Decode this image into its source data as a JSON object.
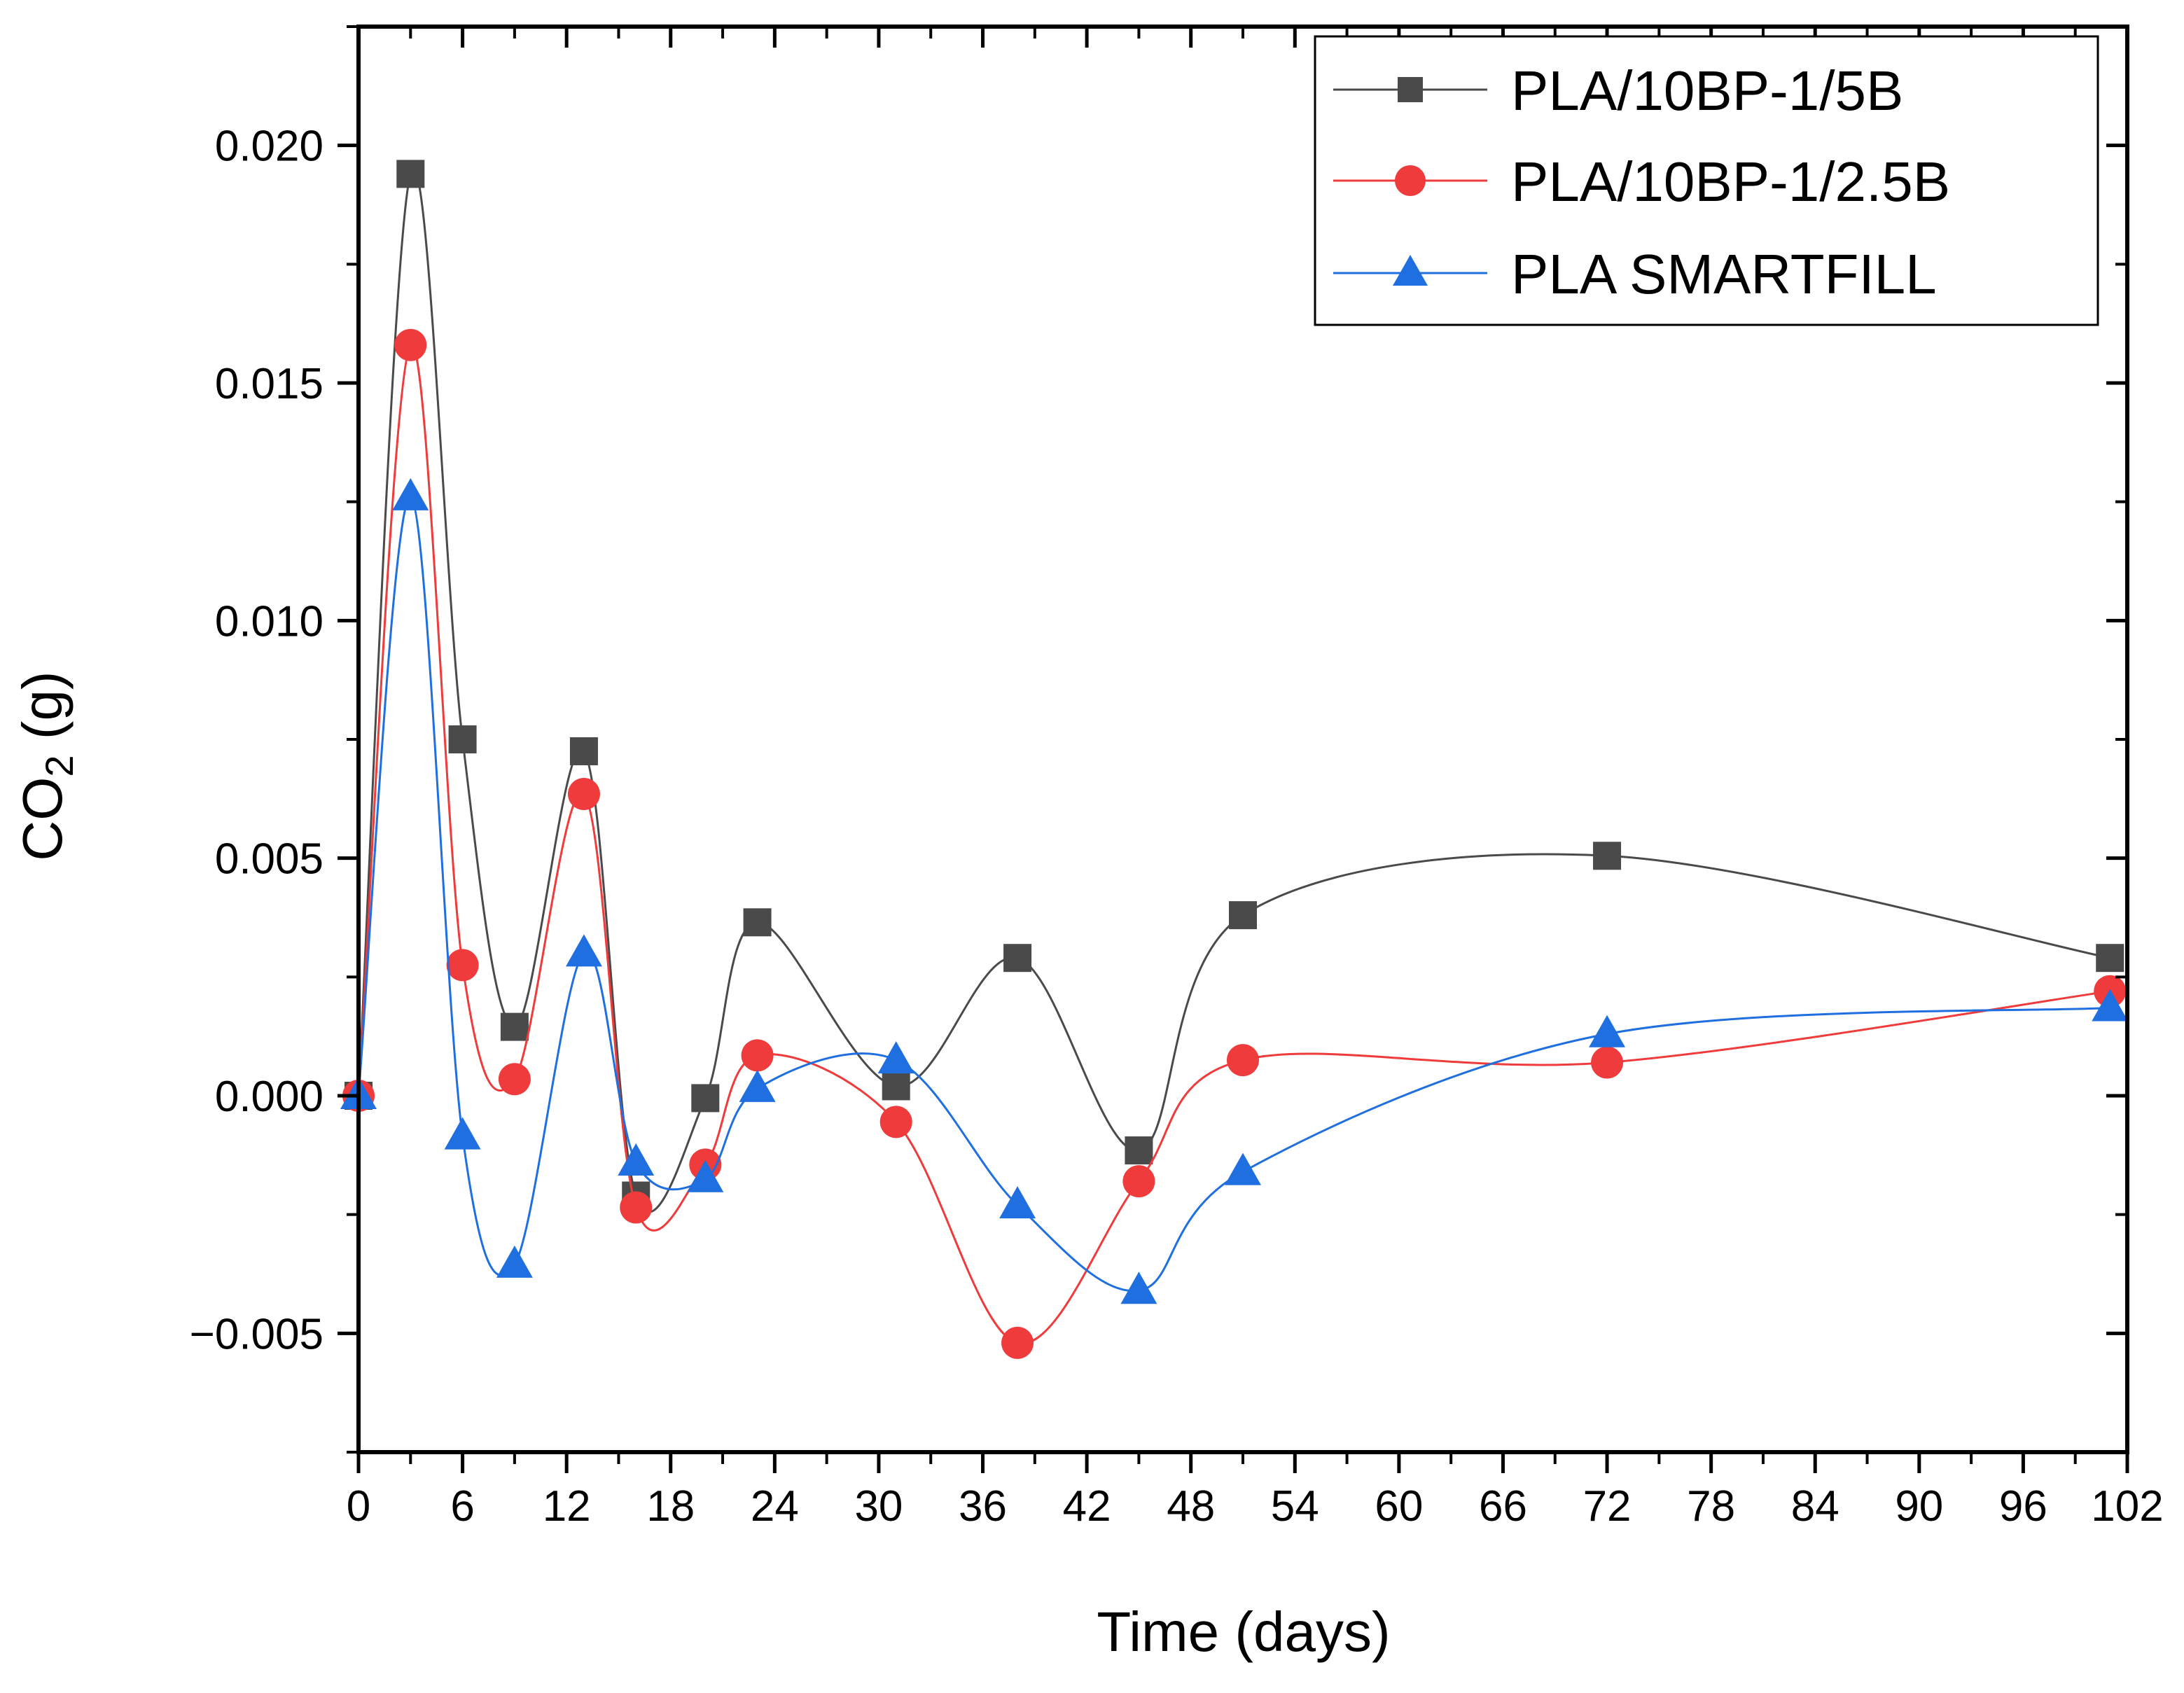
{
  "chart_data": {
    "type": "line",
    "title": "",
    "xlabel": "Time (days)",
    "ylabel_main": "CO",
    "ylabel_sub": "2",
    "ylabel_unit": " (g)",
    "xlim": [
      0,
      102
    ],
    "ylim": [
      -0.0075,
      0.0225
    ],
    "xticks": [
      0,
      6,
      12,
      18,
      24,
      30,
      36,
      42,
      48,
      54,
      60,
      66,
      72,
      78,
      84,
      90,
      96,
      102
    ],
    "xtick_labels": [
      "0",
      "6",
      "12",
      "18",
      "24",
      "30",
      "36",
      "42",
      "48",
      "54",
      "60",
      "66",
      "72",
      "78",
      "84",
      "90",
      "96",
      "102"
    ],
    "yticks": [
      -0.005,
      0.0,
      0.005,
      0.01,
      0.015,
      0.02
    ],
    "ytick_labels": [
      "−0.005",
      "0.000",
      "0.005",
      "0.010",
      "0.015",
      "0.020"
    ],
    "grid": false,
    "legend_position": "top-right",
    "series": [
      {
        "name": "PLA/10BP-1/5B",
        "marker": "square",
        "color": "#4a4a4a",
        "x": [
          0,
          3,
          6,
          9,
          13,
          16,
          20,
          23,
          31,
          38,
          45,
          51,
          72,
          101
        ],
        "y": [
          0.0,
          0.0194,
          0.0075,
          0.00145,
          0.00725,
          -0.0021,
          -5e-05,
          0.00365,
          0.0002,
          0.0029,
          -0.00115,
          0.0038,
          0.00505,
          0.0029
        ]
      },
      {
        "name": "PLA/10BP-1/2.5B",
        "marker": "circle",
        "color": "#ef3b3b",
        "x": [
          0,
          3,
          6,
          9,
          13,
          16,
          20,
          23,
          31,
          38,
          45,
          51,
          72,
          101
        ],
        "y": [
          0.0,
          0.0158,
          0.00275,
          0.00035,
          0.00635,
          -0.00235,
          -0.00145,
          0.00085,
          -0.00055,
          -0.0052,
          -0.0018,
          0.00075,
          0.0007,
          0.0022
        ]
      },
      {
        "name": "PLA SMARTFILL",
        "marker": "triangle",
        "color": "#1f6fe0",
        "x": [
          0,
          3,
          6,
          9,
          13,
          16,
          20,
          23,
          31,
          38,
          45,
          51,
          72,
          101
        ],
        "y": [
          0.0,
          0.0126,
          -0.00085,
          -0.00355,
          0.003,
          -0.0014,
          -0.00175,
          0.00015,
          0.00075,
          -0.0023,
          -0.0041,
          -0.0016,
          0.0013,
          0.00185
        ]
      }
    ]
  }
}
